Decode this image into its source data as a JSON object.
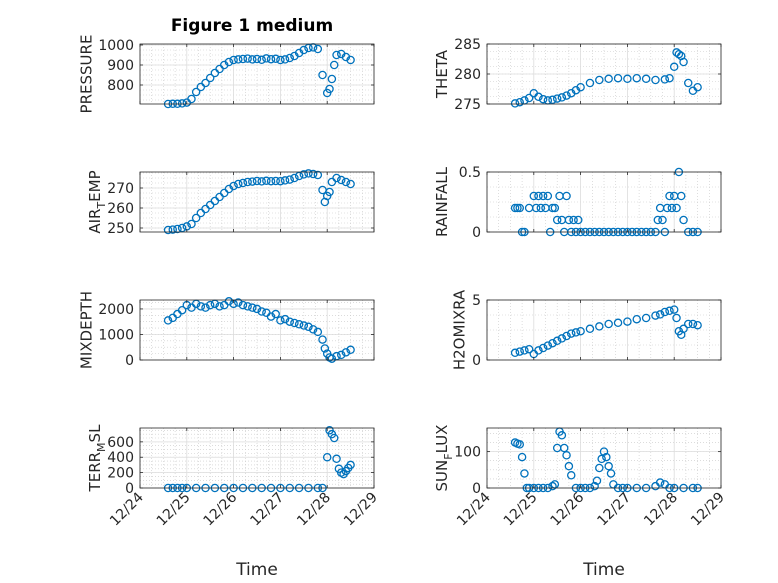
{
  "figure": {
    "title": "Figure 1 medium"
  },
  "chart_data": {
    "type": "scatter",
    "marker": "circle-open",
    "series_color": "#0072BD",
    "grid": "on",
    "x_axis": {
      "type": "date",
      "ticks": [
        24,
        25,
        26,
        27,
        28,
        29
      ],
      "tick_labels": [
        "12/24",
        "12/25",
        "12/26",
        "12/27",
        "12/28",
        "12/29"
      ],
      "xlim": [
        24,
        29
      ],
      "xlabel": "Time"
    },
    "subplots": [
      {
        "id": "pressure",
        "ylabel": "PRESSURE",
        "ylim": [
          705,
          1005
        ],
        "yticks": [
          800,
          900,
          1000
        ],
        "ytick_labels": [
          "800",
          "900",
          "1000"
        ],
        "x": [
          24.6,
          24.7,
          24.8,
          24.9,
          25.0,
          25.1,
          25.2,
          25.3,
          25.4,
          25.5,
          25.6,
          25.7,
          25.8,
          25.9,
          26.0,
          26.1,
          26.2,
          26.3,
          26.4,
          26.5,
          26.6,
          26.7,
          26.8,
          26.9,
          27.0,
          27.1,
          27.2,
          27.3,
          27.4,
          27.5,
          27.6,
          27.7,
          27.8,
          27.9,
          28.0,
          28.05,
          28.1,
          28.15,
          28.2,
          28.3,
          28.4,
          28.5
        ],
        "y": [
          705,
          706,
          706,
          708,
          712,
          730,
          765,
          790,
          810,
          835,
          860,
          880,
          900,
          915,
          925,
          928,
          930,
          932,
          928,
          930,
          926,
          933,
          929,
          931,
          925,
          928,
          935,
          945,
          960,
          975,
          985,
          988,
          980,
          850,
          760,
          780,
          830,
          900,
          950,
          955,
          940,
          925
        ]
      },
      {
        "id": "theta",
        "ylabel": "THETA",
        "ylim": [
          275,
          285
        ],
        "yticks": [
          275,
          280,
          285
        ],
        "ytick_labels": [
          "275",
          "280",
          "285"
        ],
        "x": [
          24.6,
          24.7,
          24.8,
          24.9,
          25.0,
          25.1,
          25.2,
          25.3,
          25.4,
          25.5,
          25.6,
          25.7,
          25.8,
          25.9,
          26.0,
          26.2,
          26.4,
          26.6,
          26.8,
          27.0,
          27.2,
          27.4,
          27.6,
          27.8,
          27.9,
          28.0,
          28.05,
          28.1,
          28.15,
          28.2,
          28.3,
          28.4,
          28.5
        ],
        "y": [
          275.1,
          275.3,
          275.6,
          276.0,
          276.8,
          276.2,
          275.8,
          275.6,
          275.7,
          275.9,
          276.1,
          276.4,
          276.8,
          277.3,
          277.8,
          278.5,
          279.0,
          279.2,
          279.3,
          279.2,
          279.3,
          279.2,
          279.0,
          279.1,
          279.3,
          281.2,
          283.6,
          283.3,
          283.0,
          282.0,
          278.5,
          277.2,
          277.8
        ]
      },
      {
        "id": "air_temp",
        "ylabel": "AIR_TEMP",
        "ylim": [
          248,
          278
        ],
        "yticks": [
          250,
          260,
          270
        ],
        "ytick_labels": [
          "250",
          "260",
          "270"
        ],
        "x": [
          24.6,
          24.7,
          24.8,
          24.9,
          25.0,
          25.1,
          25.2,
          25.3,
          25.4,
          25.5,
          25.6,
          25.7,
          25.8,
          25.9,
          26.0,
          26.1,
          26.2,
          26.3,
          26.4,
          26.5,
          26.6,
          26.7,
          26.8,
          26.9,
          27.0,
          27.1,
          27.2,
          27.3,
          27.4,
          27.5,
          27.6,
          27.7,
          27.8,
          27.9,
          27.95,
          28.0,
          28.05,
          28.1,
          28.2,
          28.3,
          28.4,
          28.5
        ],
        "y": [
          249,
          249.2,
          249.5,
          250,
          250.8,
          252,
          255,
          257.5,
          259.5,
          261.5,
          263.5,
          265.5,
          267.5,
          269.5,
          271,
          272,
          272.5,
          273,
          273.2,
          273.5,
          273.3,
          273.6,
          273.4,
          273.5,
          273.4,
          273.8,
          274.2,
          275,
          276,
          276.8,
          277.3,
          277,
          276.5,
          269,
          263,
          266,
          268,
          273,
          275,
          274,
          273,
          272
        ]
      },
      {
        "id": "rainfall",
        "ylabel": "RAINFALL",
        "ylim": [
          0,
          0.5
        ],
        "yticks": [
          0,
          0.5
        ],
        "ytick_labels": [
          "0",
          "0.5"
        ],
        "x": [
          24.6,
          24.65,
          24.7,
          24.75,
          24.8,
          24.9,
          25.0,
          25.05,
          25.1,
          25.15,
          25.2,
          25.25,
          25.3,
          25.35,
          25.4,
          25.45,
          25.5,
          25.55,
          25.6,
          25.65,
          25.7,
          25.75,
          25.8,
          25.85,
          25.9,
          25.95,
          26.0,
          26.1,
          26.2,
          26.3,
          26.4,
          26.5,
          26.6,
          26.7,
          26.8,
          26.9,
          27.0,
          27.1,
          27.2,
          27.3,
          27.4,
          27.5,
          27.6,
          27.65,
          27.7,
          27.75,
          27.8,
          27.85,
          27.9,
          27.95,
          28.0,
          28.05,
          28.1,
          28.15,
          28.2,
          28.3,
          28.4,
          28.5
        ],
        "y": [
          0.2,
          0.2,
          0.2,
          0,
          0,
          0.2,
          0.3,
          0.2,
          0.3,
          0.2,
          0.3,
          0.2,
          0.3,
          0,
          0.2,
          0.2,
          0.1,
          0.3,
          0.1,
          0,
          0.3,
          0.1,
          0,
          0.1,
          0,
          0.1,
          0,
          0,
          0,
          0,
          0,
          0,
          0,
          0,
          0,
          0,
          0,
          0,
          0,
          0,
          0,
          0,
          0,
          0.1,
          0.2,
          0.1,
          0,
          0.2,
          0.3,
          0.2,
          0.3,
          0.2,
          0.5,
          0.3,
          0.1,
          0,
          0,
          0
        ]
      },
      {
        "id": "mixdepth",
        "ylabel": "MIXDEPTH",
        "ylim": [
          0,
          2350
        ],
        "yticks": [
          0,
          1000,
          2000
        ],
        "ytick_labels": [
          "0",
          "1000",
          "2000"
        ],
        "x": [
          24.6,
          24.7,
          24.8,
          24.9,
          25.0,
          25.1,
          25.2,
          25.3,
          25.4,
          25.5,
          25.6,
          25.7,
          25.8,
          25.9,
          26.0,
          26.1,
          26.2,
          26.3,
          26.4,
          26.5,
          26.6,
          26.7,
          26.8,
          26.9,
          27.0,
          27.1,
          27.2,
          27.3,
          27.4,
          27.5,
          27.6,
          27.7,
          27.8,
          27.9,
          27.95,
          28.0,
          28.05,
          28.1,
          28.2,
          28.3,
          28.4,
          28.5
        ],
        "y": [
          1550,
          1650,
          1800,
          1950,
          2150,
          2050,
          2200,
          2100,
          2050,
          2150,
          2200,
          2100,
          2150,
          2300,
          2200,
          2250,
          2150,
          2100,
          2050,
          2000,
          1900,
          1850,
          1700,
          1800,
          1550,
          1600,
          1500,
          1450,
          1400,
          1350,
          1300,
          1200,
          1100,
          800,
          450,
          250,
          100,
          50,
          150,
          200,
          300,
          400
        ]
      },
      {
        "id": "h2omixra",
        "ylabel": "H2OMIXRA",
        "ylim": [
          0,
          5
        ],
        "yticks": [
          0,
          5
        ],
        "ytick_labels": [
          "0",
          "5"
        ],
        "x": [
          24.6,
          24.7,
          24.8,
          24.9,
          25.0,
          25.1,
          25.2,
          25.3,
          25.4,
          25.5,
          25.6,
          25.7,
          25.8,
          25.9,
          26.0,
          26.2,
          26.4,
          26.6,
          26.8,
          27.0,
          27.2,
          27.4,
          27.6,
          27.7,
          27.8,
          27.9,
          28.0,
          28.05,
          28.1,
          28.15,
          28.2,
          28.3,
          28.4,
          28.5
        ],
        "y": [
          0.6,
          0.7,
          0.8,
          0.9,
          0.5,
          0.8,
          1.0,
          1.2,
          1.4,
          1.6,
          1.8,
          2.0,
          2.2,
          2.3,
          2.4,
          2.6,
          2.8,
          3.0,
          3.1,
          3.2,
          3.4,
          3.5,
          3.7,
          3.8,
          4.0,
          4.1,
          4.2,
          3.5,
          2.4,
          2.1,
          2.6,
          3.0,
          3.0,
          2.9
        ]
      },
      {
        "id": "terr_msl",
        "ylabel": "TERR_MSL",
        "ylim": [
          0,
          780
        ],
        "yticks": [
          0,
          200,
          400,
          600
        ],
        "ytick_labels": [
          "0",
          "200",
          "400",
          "600"
        ],
        "x": [
          24.6,
          24.7,
          24.8,
          24.9,
          25.0,
          25.2,
          25.4,
          25.6,
          25.8,
          26.0,
          26.2,
          26.4,
          26.6,
          26.8,
          27.0,
          27.2,
          27.4,
          27.6,
          27.8,
          27.9,
          28.0,
          28.05,
          28.1,
          28.15,
          28.2,
          28.25,
          28.3,
          28.35,
          28.4,
          28.45,
          28.5
        ],
        "y": [
          0,
          0,
          0,
          0,
          0,
          0,
          0,
          0,
          0,
          0,
          0,
          0,
          0,
          0,
          0,
          0,
          0,
          0,
          0,
          0,
          400,
          750,
          700,
          650,
          380,
          250,
          200,
          180,
          220,
          260,
          300
        ]
      },
      {
        "id": "sun_flux",
        "ylabel": "SUN_FLUX",
        "ylim": [
          0,
          165
        ],
        "yticks": [
          0,
          100
        ],
        "ytick_labels": [
          "0",
          "100"
        ],
        "x": [
          24.6,
          24.65,
          24.7,
          24.75,
          24.8,
          24.85,
          24.9,
          25.0,
          25.1,
          25.2,
          25.3,
          25.4,
          25.45,
          25.5,
          25.55,
          25.6,
          25.65,
          25.7,
          25.75,
          25.8,
          25.9,
          26.0,
          26.1,
          26.2,
          26.3,
          26.35,
          26.4,
          26.45,
          26.5,
          26.55,
          26.6,
          26.65,
          26.7,
          26.8,
          26.9,
          27.0,
          27.2,
          27.4,
          27.6,
          27.7,
          27.8,
          27.9,
          28.0,
          28.2,
          28.4,
          28.5
        ],
        "y": [
          125,
          122,
          120,
          85,
          40,
          0,
          0,
          0,
          0,
          0,
          0,
          5,
          10,
          110,
          155,
          145,
          110,
          90,
          60,
          35,
          0,
          0,
          0,
          0,
          5,
          20,
          55,
          80,
          100,
          85,
          60,
          40,
          10,
          0,
          0,
          0,
          0,
          0,
          5,
          15,
          10,
          0,
          0,
          0,
          0,
          0
        ]
      }
    ]
  }
}
